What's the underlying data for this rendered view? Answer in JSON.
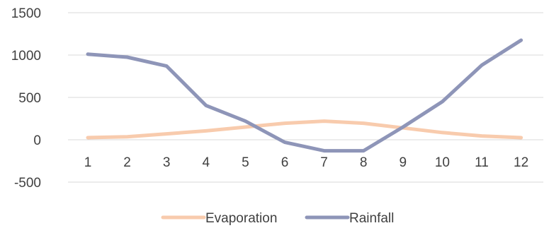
{
  "chart_data": {
    "type": "line",
    "categories": [
      "1",
      "2",
      "3",
      "4",
      "5",
      "6",
      "7",
      "8",
      "9",
      "10",
      "11",
      "12"
    ],
    "series": [
      {
        "name": "Evaporation",
        "color": "#F8CBAD",
        "values": [
          25,
          35,
          70,
          105,
          150,
          195,
          220,
          195,
          140,
          85,
          45,
          25
        ]
      },
      {
        "name": "Rainfall",
        "color": "#8E95B8",
        "values": [
          1010,
          975,
          870,
          405,
          220,
          -30,
          -130,
          -130,
          150,
          450,
          880,
          1175
        ]
      }
    ],
    "y_ticks": [
      "1500",
      "1000",
      "500",
      "0",
      "-500"
    ],
    "ylim": [
      -500,
      1500
    ],
    "grid": true,
    "legend_position": "bottom",
    "title": "",
    "xlabel": "",
    "ylabel": ""
  }
}
